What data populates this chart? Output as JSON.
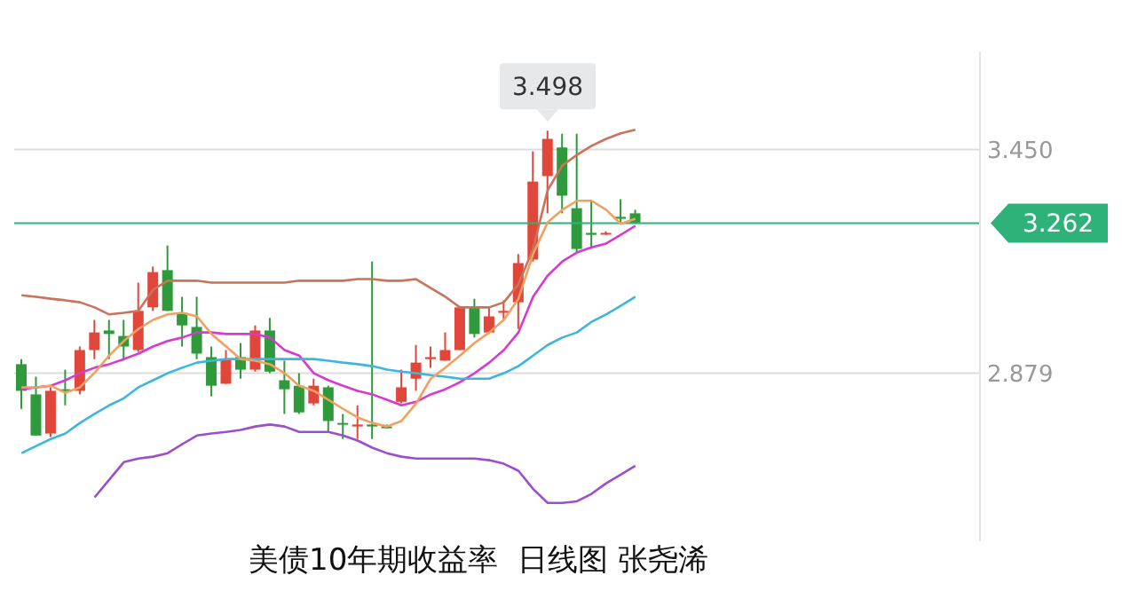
{
  "chart_data": {
    "type": "candlestick",
    "title": "美债10年期收益率  日线图 张尧浠",
    "categories": [
      null,
      null,
      null,
      null,
      null,
      null,
      null,
      null,
      null,
      null,
      null,
      null,
      null,
      null,
      null,
      null,
      null,
      null,
      null,
      null,
      null,
      null,
      null,
      null,
      null,
      null,
      null,
      null,
      null,
      null,
      null,
      null,
      null,
      null,
      null,
      null,
      null,
      null,
      null,
      null,
      null,
      null,
      null
    ],
    "ohlc": [
      [
        2.902,
        2.915,
        2.788,
        2.834
      ],
      [
        2.825,
        2.87,
        2.72,
        2.72
      ],
      [
        2.725,
        2.843,
        2.716,
        2.834
      ],
      [
        2.838,
        2.888,
        2.797,
        2.834
      ],
      [
        2.834,
        2.947,
        2.825,
        2.938
      ],
      [
        2.938,
        3.015,
        2.915,
        2.983
      ],
      [
        2.988,
        3.015,
        2.915,
        2.979
      ],
      [
        2.974,
        3.015,
        2.911,
        2.947
      ],
      [
        2.938,
        3.11,
        2.933,
        3.038
      ],
      [
        3.047,
        3.151,
        3.038,
        3.137
      ],
      [
        3.142,
        3.205,
        3.038,
        3.038
      ],
      [
        3.033,
        3.074,
        2.947,
        3.001
      ],
      [
        2.997,
        3.074,
        2.915,
        2.929
      ],
      [
        2.92,
        2.947,
        2.82,
        2.847
      ],
      [
        2.852,
        2.938,
        2.852,
        2.915
      ],
      [
        2.92,
        2.956,
        2.865,
        2.888
      ],
      [
        2.888,
        3.001,
        2.883,
        2.988
      ],
      [
        2.988,
        3.02,
        2.879,
        2.883
      ],
      [
        2.861,
        2.911,
        2.775,
        2.838
      ],
      [
        2.847,
        2.879,
        2.775,
        2.779
      ],
      [
        2.802,
        2.865,
        2.797,
        2.847
      ],
      [
        2.843,
        2.847,
        2.729,
        2.757
      ],
      [
        2.752,
        2.775,
        2.711,
        2.748
      ],
      [
        2.743,
        2.797,
        2.711,
        2.748
      ],
      [
        2.748,
        3.164,
        2.711,
        2.743
      ],
      [
        2.743,
        2.748,
        2.738,
        2.741
      ],
      [
        2.806,
        2.888,
        2.802,
        2.843
      ],
      [
        2.865,
        2.951,
        2.834,
        2.906
      ],
      [
        2.915,
        2.947,
        2.893,
        2.92
      ],
      [
        2.911,
        2.983,
        2.911,
        2.938
      ],
      [
        2.938,
        3.047,
        2.938,
        3.047
      ],
      [
        3.047,
        3.069,
        2.97,
        2.979
      ],
      [
        2.983,
        3.047,
        2.979,
        3.024
      ],
      [
        3.033,
        3.065,
        3.015,
        3.038
      ],
      [
        3.06,
        3.183,
        2.992,
        3.16
      ],
      [
        3.169,
        3.445,
        3.164,
        3.368
      ],
      [
        3.382,
        3.498,
        3.287,
        3.477
      ],
      [
        3.455,
        3.49,
        3.287,
        3.332
      ],
      [
        3.3,
        3.49,
        3.187,
        3.196
      ],
      [
        3.237,
        3.319,
        3.196,
        3.232
      ],
      [
        3.235,
        3.241,
        3.232,
        3.237
      ],
      [
        3.278,
        3.323,
        3.264,
        3.273
      ],
      [
        3.287,
        3.296,
        3.26,
        3.262
      ]
    ],
    "colors": [
      "#2f9a3c",
      "#2f9a3c",
      "#e0473a",
      "#2f9a3c",
      "#e0473a",
      "#e0473a",
      "#2f9a3c",
      "#2f9a3c",
      "#e0473a",
      "#e0473a",
      "#2f9a3c",
      "#2f9a3c",
      "#2f9a3c",
      "#2f9a3c",
      "#e0473a",
      "#2f9a3c",
      "#e0473a",
      "#2f9a3c",
      "#2f9a3c",
      "#2f9a3c",
      "#e0473a",
      "#2f9a3c",
      "#2f9a3c",
      "#e0473a",
      "#2f9a3c",
      "#2f9a3c",
      "#e0473a",
      "#e0473a",
      "#e0473a",
      "#e0473a",
      "#e0473a",
      "#2f9a3c",
      "#e0473a",
      "#e0473a",
      "#e0473a",
      "#e0473a",
      "#e0473a",
      "#2f9a3c",
      "#2f9a3c",
      "#2f9a3c",
      "#e0473a",
      "#2f9a3c",
      "#2f9a3c"
    ],
    "series": [
      {
        "type": "line",
        "color": "#c8735a",
        "values": [
          3.078,
          3.074,
          3.069,
          3.065,
          3.06,
          3.047,
          3.029,
          3.033,
          3.038,
          3.092,
          3.115,
          3.115,
          3.115,
          3.11,
          3.11,
          3.11,
          3.11,
          3.11,
          3.11,
          3.115,
          3.115,
          3.115,
          3.115,
          3.119,
          3.119,
          3.115,
          3.115,
          3.119,
          3.096,
          3.074,
          3.047,
          3.047,
          3.047,
          3.06,
          3.106,
          3.196,
          3.346,
          3.409,
          3.436,
          3.459,
          3.477,
          3.491,
          3.5
        ]
      },
      {
        "type": "line",
        "color": "#9b4fd0",
        "values": [
          null,
          null,
          null,
          null,
          null,
          2.562,
          2.607,
          2.652,
          2.661,
          2.666,
          2.675,
          2.698,
          2.72,
          2.725,
          2.729,
          2.734,
          2.743,
          2.748,
          2.743,
          2.729,
          2.729,
          2.729,
          2.72,
          2.707,
          2.689,
          2.675,
          2.666,
          2.661,
          2.661,
          2.661,
          2.661,
          2.661,
          2.657,
          2.648,
          2.63,
          2.584,
          2.548,
          2.548,
          2.552,
          2.571,
          2.598,
          2.62,
          2.643
        ]
      },
      {
        "type": "line",
        "color": "#d63ad0",
        "values": [
          2.838,
          2.843,
          2.847,
          2.861,
          2.879,
          2.893,
          2.902,
          2.915,
          2.929,
          2.947,
          2.961,
          2.97,
          2.983,
          2.983,
          2.979,
          2.979,
          2.979,
          2.97,
          2.938,
          2.924,
          2.879,
          2.861,
          2.847,
          2.834,
          2.825,
          2.811,
          2.797,
          2.806,
          2.825,
          2.838,
          2.856,
          2.879,
          2.906,
          2.938,
          2.983,
          3.074,
          3.128,
          3.164,
          3.187,
          3.2,
          3.21,
          3.232,
          3.255
        ]
      },
      {
        "type": "line",
        "color": "#3cb6e0",
        "values": [
          2.675,
          2.693,
          2.711,
          2.725,
          2.752,
          2.775,
          2.797,
          2.815,
          2.843,
          2.861,
          2.879,
          2.893,
          2.906,
          2.911,
          2.915,
          2.915,
          2.915,
          2.915,
          2.915,
          2.915,
          2.915,
          2.911,
          2.906,
          2.902,
          2.897,
          2.888,
          2.883,
          2.879,
          2.874,
          2.87,
          2.865,
          2.865,
          2.865,
          2.879,
          2.897,
          2.924,
          2.951,
          2.97,
          2.983,
          3.01,
          3.029,
          3.051,
          3.074
        ]
      },
      {
        "type": "line",
        "color": "#f0a060",
        "values": [
          2.843,
          2.843,
          2.847,
          2.829,
          2.843,
          2.88,
          2.924,
          2.961,
          2.992,
          3.015,
          3.029,
          3.033,
          3.024,
          2.979,
          2.947,
          2.915,
          2.911,
          2.902,
          2.879,
          2.847,
          2.834,
          2.811,
          2.788,
          2.766,
          2.752,
          2.743,
          2.757,
          2.802,
          2.865,
          2.893,
          2.924,
          2.956,
          2.983,
          3.015,
          3.069,
          3.183,
          3.264,
          3.296,
          3.319,
          3.319,
          3.296,
          3.26,
          3.273
        ]
      }
    ],
    "ylim": [
      2.45,
      3.7
    ],
    "yticks": [
      2.879,
      {
        "value": 3.45,
        "label": "3.450"
      }
    ],
    "grid": "y",
    "ref_lines": [
      {
        "axis": "y",
        "value": 3.262,
        "label": "3.262",
        "color": "#2fb27a"
      }
    ],
    "annotations": [
      {
        "text": "3.498",
        "y": 3.498
      }
    ]
  }
}
